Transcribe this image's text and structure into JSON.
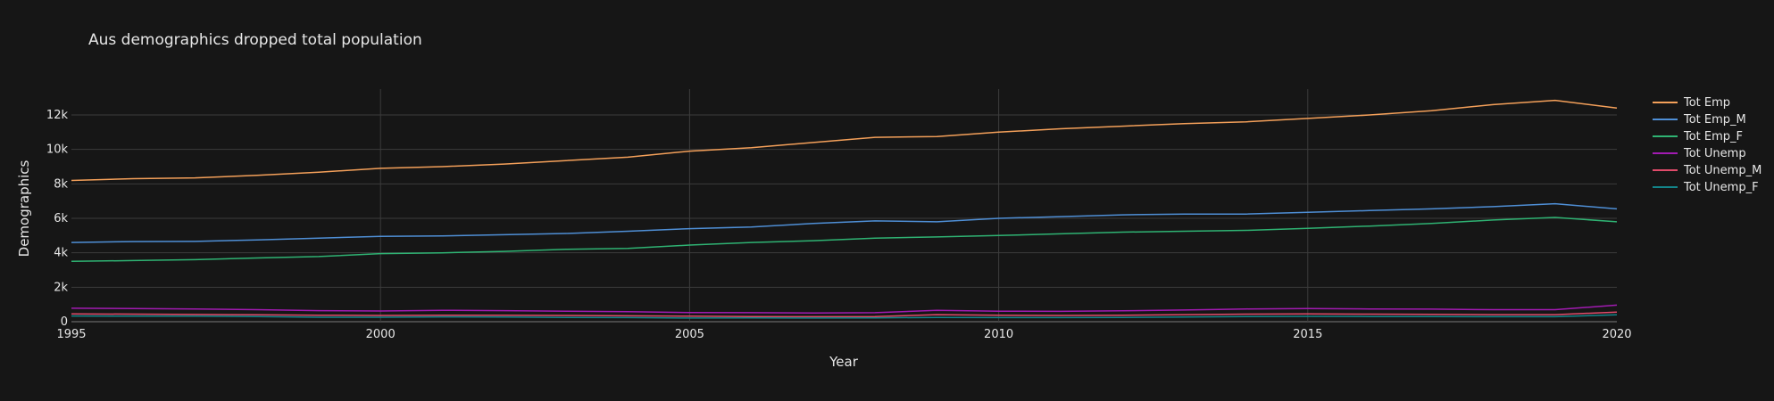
{
  "chart_data": {
    "type": "line",
    "title": "Aus demographics dropped total population",
    "xlabel": "Year",
    "ylabel": "Demographics",
    "xlim": [
      1995,
      2020
    ],
    "ylim": [
      0,
      13500
    ],
    "x_ticks": [
      1995,
      2000,
      2005,
      2010,
      2015,
      2020
    ],
    "y_ticks": [
      0,
      2000,
      4000,
      6000,
      8000,
      10000,
      12000
    ],
    "y_tick_labels": [
      "0",
      "2k",
      "4k",
      "6k",
      "8k",
      "10k",
      "12k"
    ],
    "grid": true,
    "legend_position": "right",
    "x": [
      1995,
      1996,
      1997,
      1998,
      1999,
      2000,
      2001,
      2002,
      2003,
      2004,
      2005,
      2006,
      2007,
      2008,
      2009,
      2010,
      2011,
      2012,
      2013,
      2014,
      2015,
      2016,
      2017,
      2018,
      2019,
      2020
    ],
    "series": [
      {
        "name": "Tot Emp",
        "color": "#f4a05a",
        "values": [
          8200,
          8300,
          8350,
          8500,
          8680,
          8900,
          9000,
          9150,
          9350,
          9550,
          9900,
          10100,
          10400,
          10700,
          10750,
          11000,
          11200,
          11350,
          11500,
          11600,
          11800,
          12000,
          12250,
          12600,
          12850,
          12400
        ]
      },
      {
        "name": "Tot Emp_M",
        "color": "#4f8fd6",
        "values": [
          4600,
          4650,
          4660,
          4750,
          4850,
          4950,
          4980,
          5050,
          5120,
          5250,
          5400,
          5500,
          5700,
          5850,
          5800,
          6000,
          6100,
          6200,
          6250,
          6250,
          6350,
          6450,
          6550,
          6680,
          6850,
          6550
        ]
      },
      {
        "name": "Tot Emp_F",
        "color": "#2fb373",
        "values": [
          3500,
          3550,
          3600,
          3700,
          3780,
          3950,
          4000,
          4080,
          4200,
          4250,
          4450,
          4600,
          4700,
          4850,
          4920,
          5000,
          5100,
          5200,
          5250,
          5300,
          5420,
          5550,
          5700,
          5900,
          6050,
          5800
        ]
      },
      {
        "name": "Tot Unemp",
        "color": "#a21bb2",
        "values": [
          780,
          760,
          740,
          700,
          640,
          620,
          660,
          640,
          610,
          580,
          530,
          520,
          500,
          520,
          660,
          610,
          600,
          630,
          680,
          740,
          760,
          740,
          730,
          700,
          700,
          960
        ]
      },
      {
        "name": "Tot Unemp_M",
        "color": "#e04b6a",
        "values": [
          450,
          440,
          420,
          400,
          380,
          360,
          380,
          370,
          360,
          340,
          320,
          300,
          290,
          300,
          410,
          370,
          360,
          380,
          410,
          440,
          450,
          440,
          430,
          410,
          410,
          560
        ]
      },
      {
        "name": "Tot Unemp_F",
        "color": "#13858a",
        "values": [
          330,
          320,
          320,
          300,
          260,
          260,
          280,
          270,
          250,
          240,
          210,
          220,
          210,
          220,
          250,
          240,
          240,
          250,
          270,
          300,
          310,
          300,
          300,
          290,
          290,
          400
        ]
      }
    ]
  }
}
